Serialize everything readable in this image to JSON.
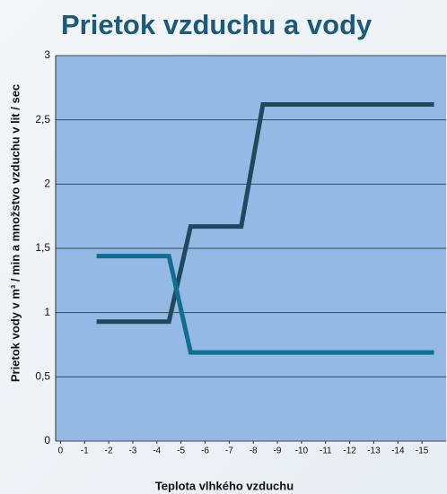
{
  "chart_data": {
    "type": "line",
    "title": "Prietok vzduchu a vody",
    "xlabel": "Teplota vlhkého vzduchu",
    "ylabel": "Prietok vody v m³ / min a množstvo vzduchu v lit / sec",
    "series": [
      {
        "color": "#1f4a5e",
        "x": [
          -1.5,
          -4.5,
          -5.4,
          -7.5,
          -8.4,
          -15.5
        ],
        "values": [
          0.93,
          0.93,
          1.67,
          1.67,
          2.62,
          2.62
        ]
      },
      {
        "color": "#0f6f8f",
        "x": [
          -1.5,
          -4.5,
          -5.4,
          -15.5
        ],
        "values": [
          1.44,
          1.44,
          0.69,
          0.69
        ]
      }
    ],
    "xlim": [
      0.2,
      -16
    ],
    "xticks": [
      0,
      -1,
      -2,
      -3,
      -4,
      -5,
      -6,
      -7,
      -8,
      -9,
      -10,
      -11,
      -12,
      -13,
      -14,
      -15
    ],
    "ylim": [
      0,
      3
    ],
    "yticks": [
      0,
      {
        "value": 0.5,
        "label": "0,5"
      },
      1,
      {
        "value": 1.5,
        "label": "1,5"
      },
      2,
      {
        "value": 2.5,
        "label": "2,5"
      },
      3
    ],
    "grid": true,
    "plot_color": "#93b9e4"
  }
}
